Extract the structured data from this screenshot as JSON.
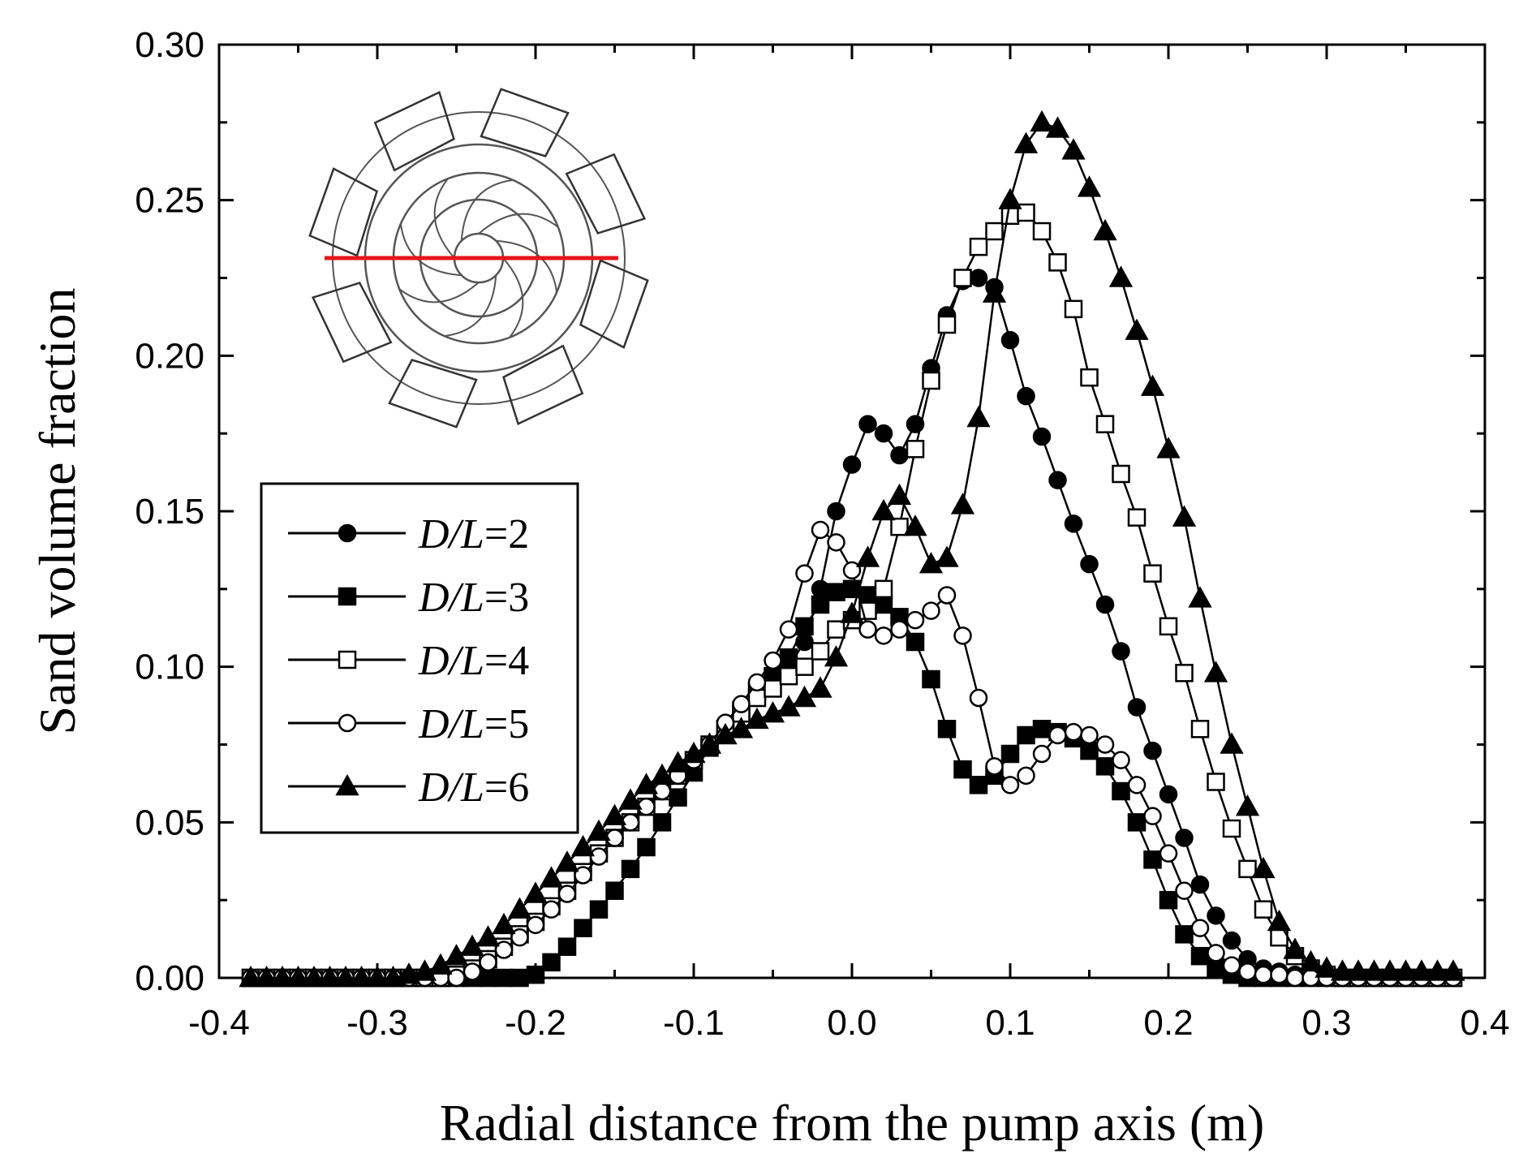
{
  "chart_data": {
    "type": "line",
    "title": "",
    "xlabel": "Radial distance from the pump axis (m)",
    "ylabel": "Sand volume fraction",
    "xlim": [
      -0.4,
      0.4
    ],
    "ylim": [
      0.0,
      0.3
    ],
    "xticks": [
      -0.4,
      -0.3,
      -0.2,
      -0.1,
      0.0,
      0.1,
      0.2,
      0.3,
      0.4
    ],
    "xtick_labels": [
      "-0.4",
      "-0.3",
      "-0.2",
      "-0.1",
      "0.0",
      "0.1",
      "0.2",
      "0.3",
      "0.4"
    ],
    "yticks": [
      0.0,
      0.05,
      0.1,
      0.15,
      0.2,
      0.25,
      0.3
    ],
    "ytick_labels": [
      "0.00",
      "0.05",
      "0.10",
      "0.15",
      "0.20",
      "0.25",
      "0.30"
    ],
    "grid": false,
    "legend_position": "left",
    "x": [
      -0.38,
      -0.37,
      -0.36,
      -0.35,
      -0.34,
      -0.33,
      -0.32,
      -0.31,
      -0.3,
      -0.29,
      -0.28,
      -0.27,
      -0.26,
      -0.25,
      -0.24,
      -0.23,
      -0.22,
      -0.21,
      -0.2,
      -0.19,
      -0.18,
      -0.17,
      -0.16,
      -0.15,
      -0.14,
      -0.13,
      -0.12,
      -0.11,
      -0.1,
      -0.09,
      -0.08,
      -0.07,
      -0.06,
      -0.05,
      -0.04,
      -0.03,
      -0.02,
      -0.01,
      0.0,
      0.01,
      0.02,
      0.03,
      0.04,
      0.05,
      0.06,
      0.07,
      0.08,
      0.09,
      0.1,
      0.11,
      0.12,
      0.13,
      0.14,
      0.15,
      0.16,
      0.17,
      0.18,
      0.19,
      0.2,
      0.21,
      0.22,
      0.23,
      0.24,
      0.25,
      0.26,
      0.27,
      0.28,
      0.29,
      0.3,
      0.31,
      0.32,
      0.33,
      0.34,
      0.35,
      0.36,
      0.37,
      0.38
    ],
    "series": [
      {
        "name": "D/L=2",
        "marker": "circle-filled",
        "values": [
          0,
          0,
          0,
          0,
          0,
          0,
          0,
          0,
          0,
          0,
          0,
          0,
          0,
          0,
          0.003,
          0.006,
          0.01,
          0.014,
          0.018,
          0.023,
          0.028,
          0.034,
          0.04,
          0.045,
          0.05,
          0.055,
          0.06,
          0.065,
          0.07,
          0.075,
          0.08,
          0.085,
          0.09,
          0.095,
          0.1,
          0.108,
          0.125,
          0.15,
          0.165,
          0.178,
          0.175,
          0.168,
          0.178,
          0.196,
          0.213,
          0.224,
          0.225,
          0.222,
          0.205,
          0.187,
          0.174,
          0.16,
          0.146,
          0.133,
          0.12,
          0.105,
          0.087,
          0.073,
          0.059,
          0.045,
          0.03,
          0.02,
          0.012,
          0.006,
          0.003,
          0.002,
          0.001,
          0.001,
          0,
          0,
          0,
          0,
          0,
          0,
          0,
          0,
          0
        ]
      },
      {
        "name": "D/L=3",
        "marker": "square-filled",
        "values": [
          0,
          0,
          0,
          0,
          0,
          0,
          0,
          0,
          0,
          0,
          0,
          0,
          0,
          0,
          0,
          0,
          0,
          0,
          0.001,
          0.005,
          0.01,
          0.016,
          0.022,
          0.028,
          0.035,
          0.042,
          0.05,
          0.058,
          0.066,
          0.074,
          0.08,
          0.086,
          0.092,
          0.097,
          0.103,
          0.113,
          0.12,
          0.124,
          0.125,
          0.123,
          0.12,
          0.116,
          0.108,
          0.096,
          0.08,
          0.067,
          0.062,
          0.065,
          0.072,
          0.078,
          0.08,
          0.079,
          0.077,
          0.073,
          0.068,
          0.06,
          0.05,
          0.038,
          0.025,
          0.014,
          0.007,
          0.003,
          0.001,
          0,
          0,
          0,
          0,
          0,
          0,
          0,
          0,
          0,
          0,
          0,
          0,
          0,
          0
        ]
      },
      {
        "name": "D/L=4",
        "marker": "square-open",
        "values": [
          0,
          0,
          0,
          0,
          0,
          0,
          0,
          0,
          0,
          0,
          0,
          0,
          0,
          0.001,
          0.003,
          0.006,
          0.01,
          0.014,
          0.018,
          0.023,
          0.028,
          0.034,
          0.04,
          0.045,
          0.05,
          0.055,
          0.06,
          0.065,
          0.07,
          0.075,
          0.08,
          0.085,
          0.09,
          0.093,
          0.097,
          0.1,
          0.105,
          0.112,
          0.115,
          0.118,
          0.125,
          0.145,
          0.17,
          0.192,
          0.21,
          0.225,
          0.235,
          0.24,
          0.245,
          0.246,
          0.24,
          0.23,
          0.215,
          0.193,
          0.178,
          0.162,
          0.148,
          0.13,
          0.113,
          0.098,
          0.08,
          0.063,
          0.048,
          0.035,
          0.022,
          0.013,
          0.007,
          0.003,
          0.001,
          0,
          0,
          0,
          0,
          0,
          0,
          0,
          0
        ]
      },
      {
        "name": "D/L=5",
        "marker": "circle-open",
        "values": [
          0,
          0,
          0,
          0,
          0,
          0,
          0,
          0,
          0,
          0,
          0,
          0,
          0,
          0,
          0.002,
          0.005,
          0.009,
          0.013,
          0.017,
          0.022,
          0.027,
          0.033,
          0.039,
          0.045,
          0.05,
          0.055,
          0.06,
          0.065,
          0.07,
          0.075,
          0.082,
          0.088,
          0.095,
          0.102,
          0.112,
          0.13,
          0.144,
          0.14,
          0.131,
          0.112,
          0.11,
          0.112,
          0.115,
          0.118,
          0.123,
          0.11,
          0.09,
          0.068,
          0.062,
          0.065,
          0.072,
          0.078,
          0.079,
          0.078,
          0.075,
          0.07,
          0.062,
          0.052,
          0.04,
          0.028,
          0.016,
          0.008,
          0.004,
          0.002,
          0.001,
          0.001,
          0,
          0,
          0,
          0,
          0,
          0,
          0,
          0,
          0,
          0,
          0
        ]
      },
      {
        "name": "D/L=6",
        "marker": "triangle-filled",
        "values": [
          0,
          0,
          0,
          0,
          0,
          0,
          0,
          0,
          0,
          0,
          0.001,
          0.002,
          0.004,
          0.007,
          0.01,
          0.013,
          0.017,
          0.022,
          0.027,
          0.032,
          0.037,
          0.042,
          0.047,
          0.052,
          0.057,
          0.062,
          0.065,
          0.069,
          0.072,
          0.075,
          0.078,
          0.08,
          0.083,
          0.085,
          0.087,
          0.09,
          0.093,
          0.103,
          0.117,
          0.135,
          0.15,
          0.155,
          0.145,
          0.133,
          0.135,
          0.152,
          0.18,
          0.22,
          0.25,
          0.268,
          0.275,
          0.273,
          0.266,
          0.254,
          0.24,
          0.225,
          0.208,
          0.19,
          0.17,
          0.148,
          0.122,
          0.098,
          0.075,
          0.055,
          0.035,
          0.018,
          0.009,
          0.005,
          0.003,
          0.002,
          0.002,
          0.002,
          0.002,
          0.002,
          0.002,
          0.002,
          0.002
        ]
      }
    ],
    "legend_entries": [
      "D/L=2",
      "D/L=3",
      "D/L=4",
      "D/L=5",
      "D/L=6"
    ],
    "colors": {
      "line": "#000000",
      "inset_section_line": "#e8141b",
      "inset_geometry": "#555555"
    }
  }
}
